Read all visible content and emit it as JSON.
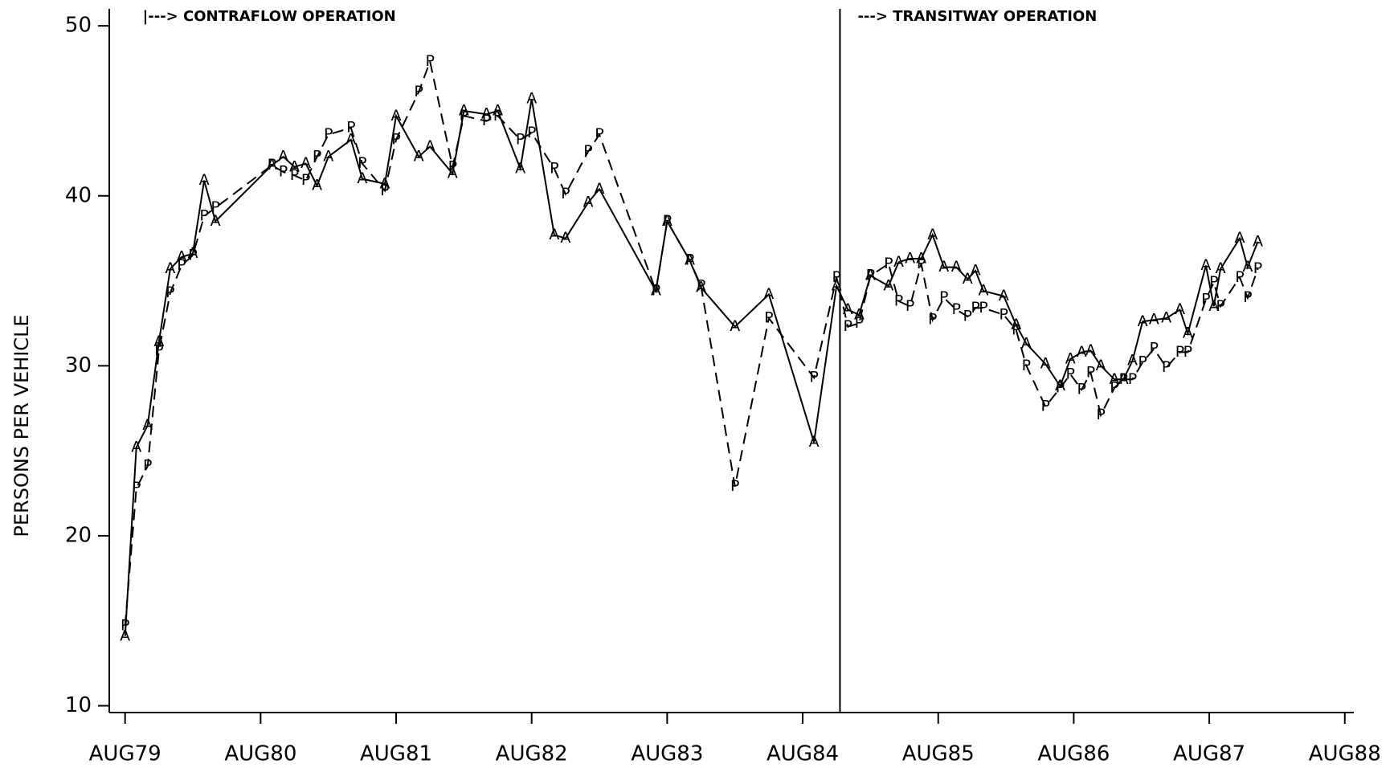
{
  "chart_data": {
    "type": "line",
    "ylabel": "PERSONS PER VEHICLE",
    "annotations": [
      {
        "text": "|---> CONTRAFLOW OPERATION",
        "x": 0,
        "line": false
      },
      {
        "text": "---> TRANSITWAY OPERATION",
        "x": 63.3,
        "line": true
      }
    ],
    "x": [
      0,
      1,
      2,
      3,
      4,
      5,
      6,
      7,
      8,
      13,
      14,
      15,
      16,
      17,
      18,
      20,
      21,
      23,
      24,
      26,
      27,
      29,
      30,
      32,
      33,
      35,
      36,
      38,
      39,
      41,
      42,
      47,
      48,
      50,
      51,
      54,
      57,
      61,
      63,
      64,
      65,
      66,
      67.6,
      68.5,
      69.5,
      70.5,
      71.5,
      72.5,
      73.6,
      74.6,
      75.3,
      76,
      77.8,
      78.9,
      79.8,
      81.5,
      82.8,
      83.7,
      84.7,
      85.5,
      86.4,
      87.6,
      88.4,
      89.2,
      90.1,
      91.1,
      92.2,
      93.4,
      94.1,
      95.7,
      96.4,
      97,
      98.7,
      99.4,
      100.3
    ],
    "series": [
      {
        "marker": "A",
        "color": "#000000",
        "dashed": false,
        "values": [
          14.1,
          25.2,
          26.5,
          31.4,
          35.7,
          36.4,
          36.6,
          40.9,
          38.5,
          41.8,
          42.3,
          41.7,
          41.9,
          40.6,
          42.3,
          43.3,
          41.0,
          40.7,
          44.7,
          42.3,
          42.9,
          41.3,
          45.0,
          44.8,
          45.0,
          41.6,
          45.7,
          37.7,
          37.5,
          39.6,
          40.4,
          34.4,
          38.5,
          36.2,
          34.6,
          32.3,
          34.2,
          25.5,
          34.7,
          33.3,
          33.0,
          35.3,
          34.7,
          36.1,
          36.3,
          36.3,
          37.7,
          35.8,
          35.8,
          35.1,
          35.6,
          34.4,
          34.1,
          32.4,
          31.3,
          30.1,
          28.8,
          30.4,
          30.8,
          30.9,
          30.0,
          29.2,
          29.2,
          30.3,
          32.6,
          32.7,
          32.8,
          33.3,
          31.9,
          35.9,
          33.5,
          35.7,
          37.5,
          35.8,
          37.3
        ]
      },
      {
        "marker": "P",
        "color": "#000000",
        "dashed": true,
        "values": [
          14.7,
          22.8,
          24.1,
          30.9,
          34.3,
          35.9,
          36.5,
          38.8,
          39.3,
          41.8,
          41.4,
          41.2,
          40.9,
          42.3,
          43.6,
          44.0,
          41.9,
          40.3,
          43.3,
          46.1,
          47.9,
          41.7,
          44.7,
          44.4,
          44.7,
          43.3,
          43.7,
          41.6,
          40.1,
          42.6,
          43.6,
          34.4,
          38.5,
          36.2,
          34.7,
          22.9,
          32.8,
          29.3,
          35.2,
          32.3,
          32.5,
          35.3,
          36.0,
          33.8,
          33.5,
          36.0,
          32.7,
          34.0,
          33.3,
          32.9,
          33.4,
          33.4,
          33.0,
          32.1,
          30.0,
          27.6,
          28.7,
          29.5,
          28.6,
          29.6,
          27.1,
          28.7,
          29.2,
          29.2,
          30.2,
          31.0,
          29.9,
          30.8,
          30.8,
          33.9,
          34.9,
          33.5,
          35.2,
          34.0,
          35.7
        ]
      }
    ],
    "xlim": [
      -1.4,
      108.8
    ],
    "xticks": [
      {
        "value": 0,
        "label": "AUG79"
      },
      {
        "value": 12,
        "label": "AUG80"
      },
      {
        "value": 24,
        "label": "AUG81"
      },
      {
        "value": 36,
        "label": "AUG82"
      },
      {
        "value": 48,
        "label": "AUG83"
      },
      {
        "value": 60,
        "label": "AUG84"
      },
      {
        "value": 72,
        "label": "AUG85"
      },
      {
        "value": 84,
        "label": "AUG86"
      },
      {
        "value": 96,
        "label": "AUG87"
      },
      {
        "value": 108,
        "label": "AUG88"
      }
    ],
    "ylim": [
      9.6,
      51
    ],
    "yticks": [
      10,
      20,
      30,
      40,
      50
    ],
    "grid": false
  }
}
